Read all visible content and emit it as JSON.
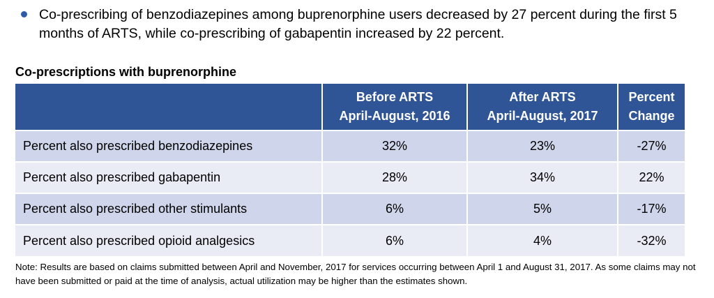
{
  "bullet": {
    "text": "Co-prescribing of benzodiazepines among buprenorphine users decreased by 27 percent during the first 5 months of ARTS, while co-prescribing of gabapentin increased by 22 percent."
  },
  "table": {
    "title": "Co-prescriptions with buprenorphine",
    "headers": [
      {
        "line1": "",
        "line2": ""
      },
      {
        "line1": "Before ARTS",
        "line2": "April-August, 2016"
      },
      {
        "line1": "After ARTS",
        "line2": "April-August, 2017"
      },
      {
        "line1": "Percent",
        "line2": "Change"
      }
    ],
    "rows": [
      {
        "label": "Percent also prescribed benzodiazepines",
        "before": "32%",
        "after": "23%",
        "change": "-27%"
      },
      {
        "label": "Percent also prescribed gabapentin",
        "before": "28%",
        "after": "34%",
        "change": "22%"
      },
      {
        "label": "Percent also prescribed other stimulants",
        "before": "6%",
        "after": "5%",
        "change": "-17%"
      },
      {
        "label": "Percent also prescribed opioid analgesics",
        "before": "6%",
        "after": "4%",
        "change": "-32%"
      }
    ]
  },
  "note": "Note: Results are based on claims submitted between April and November, 2017 for services occurring between April 1 and August 31, 2017.  As some claims may not have been submitted or paid at the time of analysis, actual utilization may be higher than the estimates shown.",
  "colors": {
    "header_bg": "#2f5597",
    "row_dark": "#cfd5ea",
    "row_light": "#e9ebf5",
    "bullet": "#2e5ba8"
  }
}
